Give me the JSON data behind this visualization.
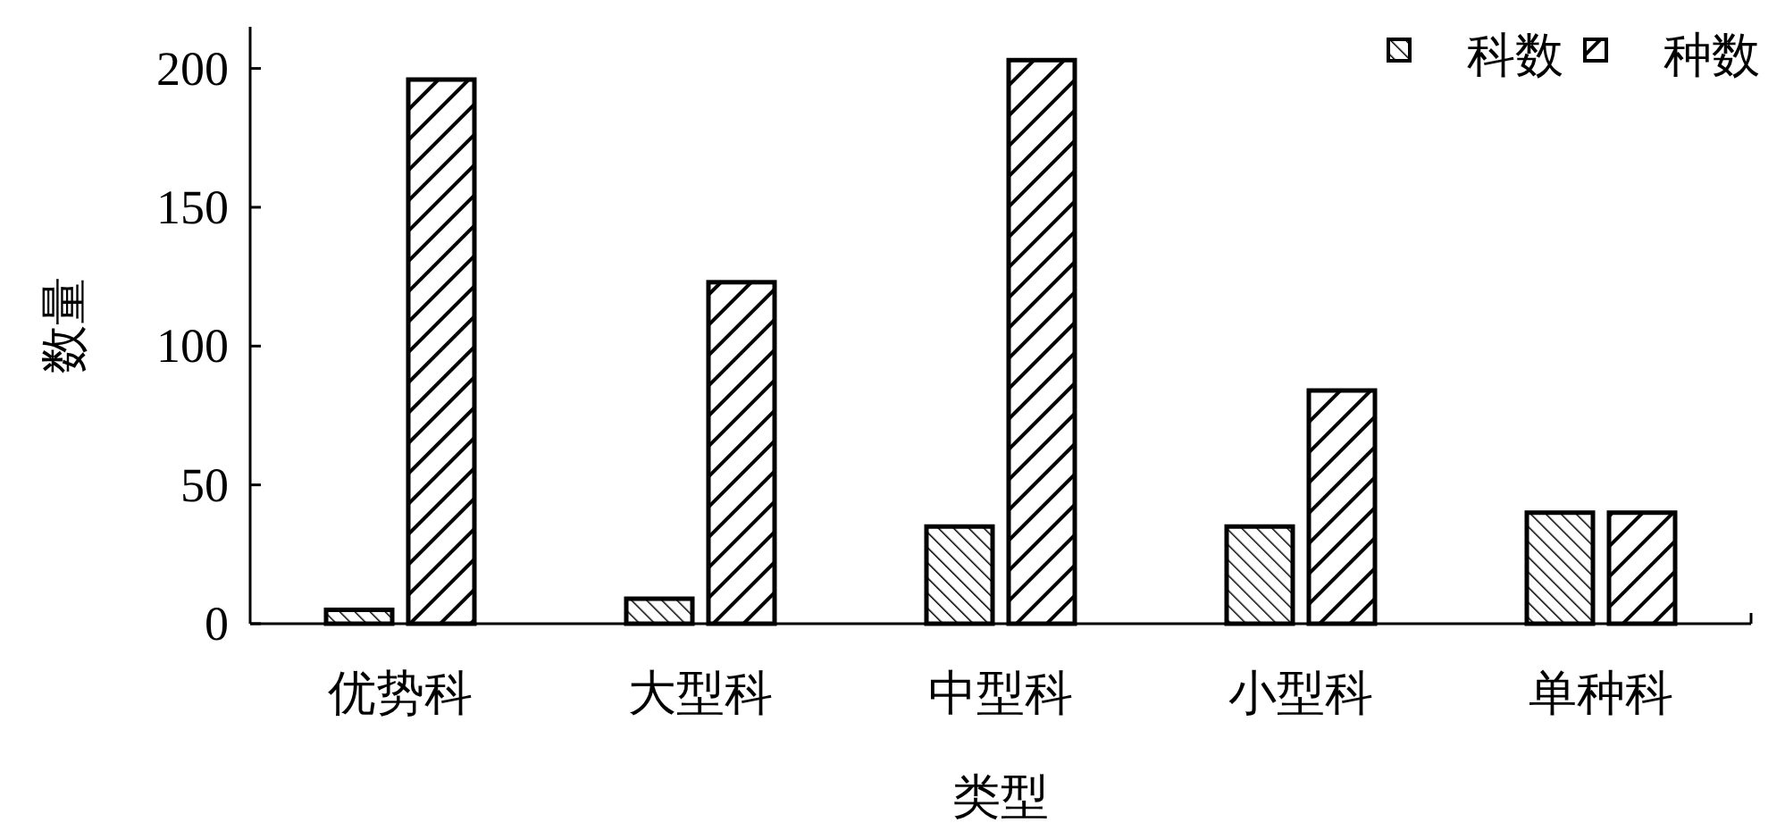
{
  "chart_data": {
    "type": "bar",
    "xlabel": "类型",
    "ylabel": "数量",
    "categories": [
      "优势科",
      "大型科",
      "中型科",
      "小型科",
      "单种科"
    ],
    "series": [
      {
        "name": "科数",
        "color": "#000000",
        "values": [
          5,
          9,
          35,
          35,
          40
        ]
      },
      {
        "name": "种数",
        "color": "#000000",
        "values": [
          196,
          123,
          203,
          84,
          40
        ]
      }
    ],
    "ylim": [
      0,
      215
    ],
    "yticks": [
      0,
      50,
      100,
      150,
      200
    ],
    "legend": "top right",
    "grid": false
  }
}
